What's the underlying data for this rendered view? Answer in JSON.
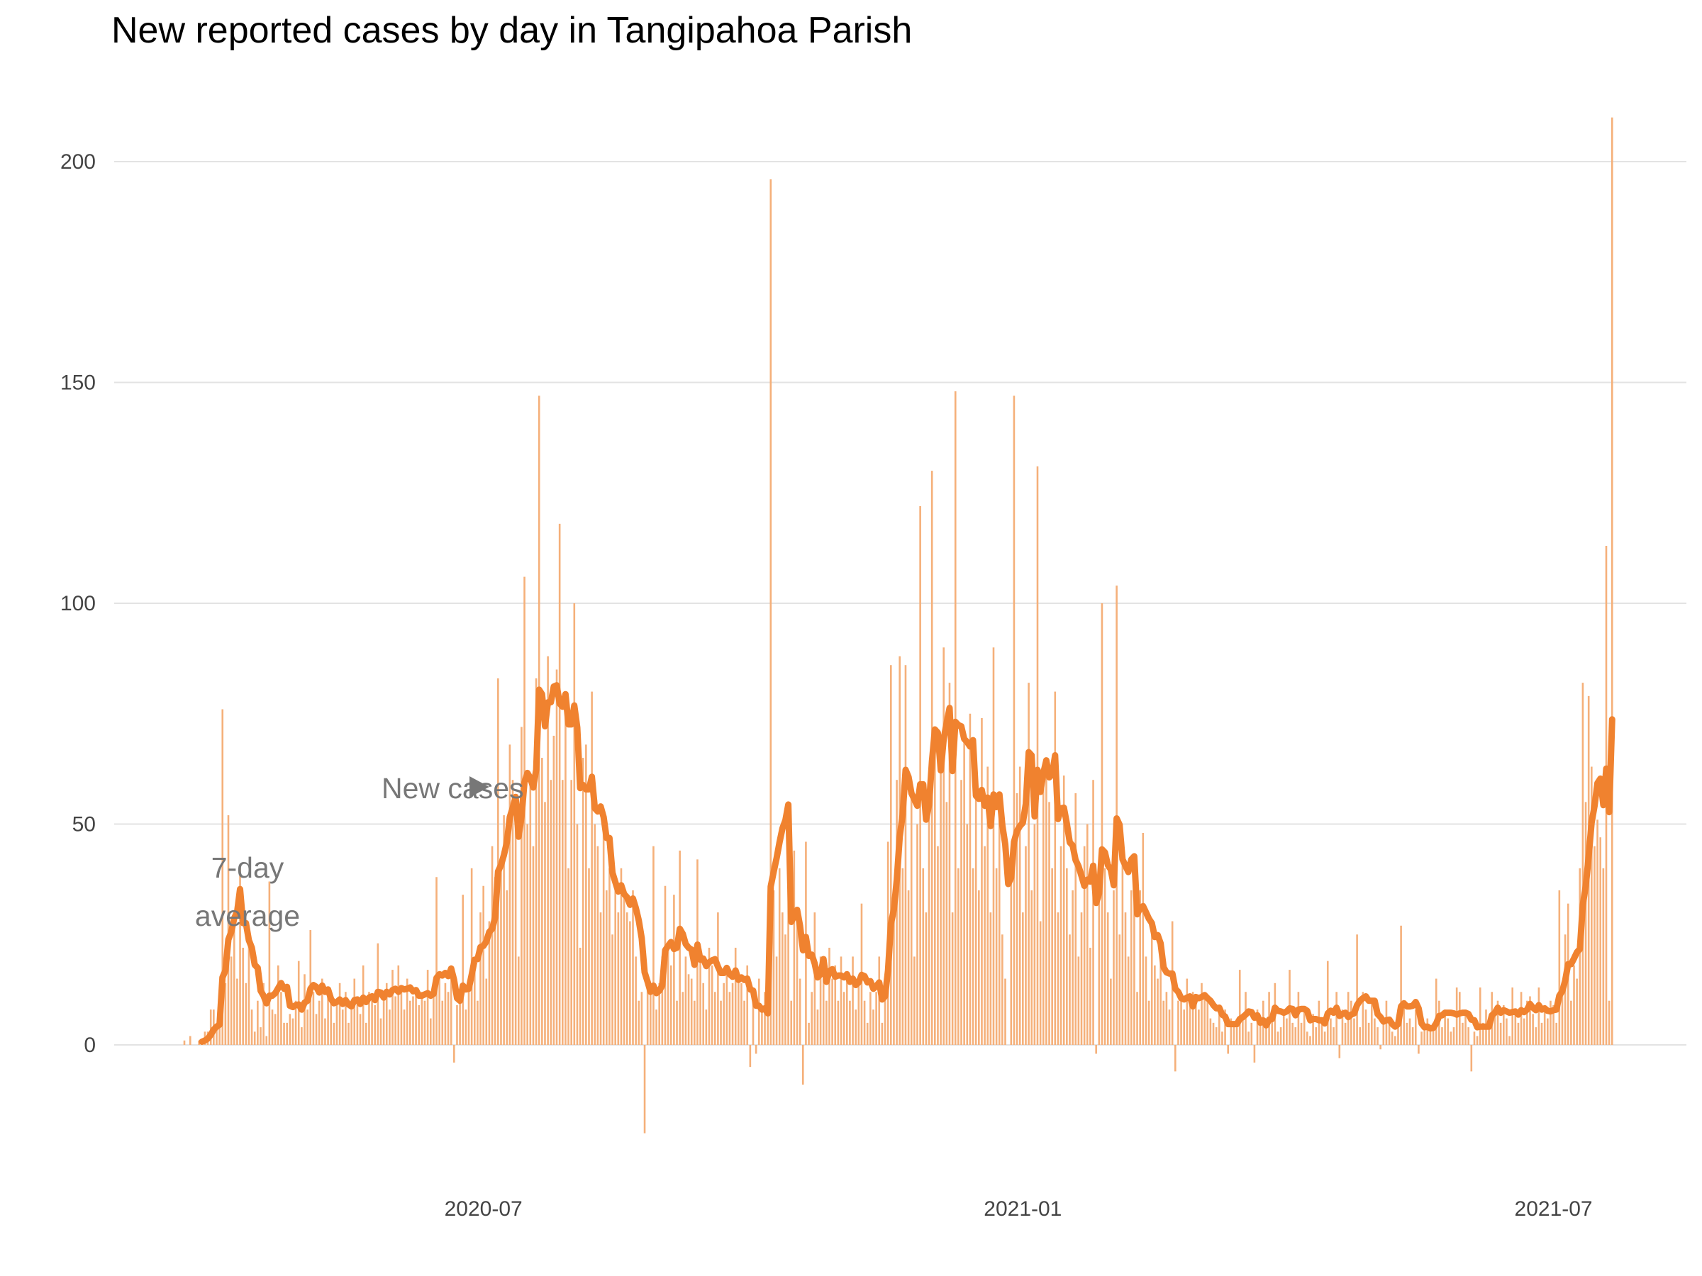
{
  "chart_data": {
    "type": "bar",
    "title": "New reported cases by day in Tangipahoa Parish",
    "xlabel": "",
    "ylabel": "",
    "start_date": "2020-03-21",
    "ylim": [
      -25,
      215
    ],
    "y_ticks": [
      0,
      50,
      100,
      150,
      200
    ],
    "y_tick_labels": [
      "0",
      "50",
      "100",
      "150",
      "200"
    ],
    "x_ticks": [
      {
        "date": "2020-07-01",
        "label": "2020-07"
      },
      {
        "date": "2021-01-01",
        "label": "2021-01"
      },
      {
        "date": "2021-07-01",
        "label": "2021-07"
      }
    ],
    "grid": true,
    "annotations": {
      "new_cases": "New cases",
      "avg_line1": "7-day",
      "avg_line2": "average"
    },
    "series": [
      {
        "name": "New cases",
        "type": "bar",
        "color": "#f5b07a",
        "values": [
          1,
          0,
          2,
          0,
          0,
          1,
          1,
          3,
          3,
          8,
          8,
          5,
          4,
          76,
          14,
          52,
          20,
          30,
          15,
          40,
          22,
          14,
          25,
          8,
          3,
          10,
          4,
          14,
          2,
          37,
          8,
          7,
          18,
          12,
          5,
          5,
          7,
          6,
          10,
          19,
          4,
          16,
          8,
          26,
          12,
          7,
          10,
          15,
          6,
          12,
          11,
          5,
          9,
          14,
          8,
          12,
          5,
          8,
          15,
          10,
          7,
          18,
          5,
          12,
          10,
          9,
          23,
          6,
          10,
          14,
          8,
          17,
          11,
          18,
          12,
          8,
          15,
          10,
          11,
          13,
          9,
          12,
          10,
          17,
          6,
          14,
          38,
          15,
          10,
          14,
          12,
          18,
          -4,
          9,
          11,
          34,
          8,
          13,
          40,
          20,
          10,
          30,
          36,
          15,
          28,
          45,
          38,
          83,
          40,
          52,
          35,
          68,
          60,
          55,
          20,
          72,
          106,
          50,
          60,
          45,
          83,
          147,
          65,
          55,
          88,
          60,
          70,
          85,
          118,
          60,
          75,
          40,
          60,
          100,
          50,
          22,
          65,
          68,
          40,
          80,
          50,
          45,
          30,
          48,
          35,
          40,
          25,
          35,
          30,
          40,
          34,
          30,
          28,
          35,
          20,
          10,
          12,
          -20,
          15,
          12,
          45,
          8,
          14,
          20,
          36,
          22,
          18,
          34,
          10,
          44,
          12,
          20,
          16,
          15,
          10,
          42,
          20,
          14,
          8,
          22,
          18,
          12,
          30,
          10,
          14,
          16,
          12,
          14,
          22,
          15,
          14,
          10,
          18,
          -5,
          12,
          -2,
          15,
          8,
          12,
          10,
          196,
          35,
          20,
          40,
          30,
          25,
          35,
          10,
          44,
          30,
          15,
          -9,
          46,
          5,
          12,
          30,
          8,
          20,
          15,
          10,
          22,
          15,
          18,
          10,
          20,
          12,
          15,
          10,
          20,
          8,
          14,
          32,
          10,
          5,
          12,
          8,
          12,
          20,
          5,
          15,
          46,
          86,
          30,
          60,
          88,
          40,
          86,
          35,
          60,
          20,
          50,
          122,
          40,
          30,
          58,
          130,
          70,
          45,
          62,
          90,
          55,
          82,
          30,
          148,
          40,
          60,
          70,
          50,
          75,
          40,
          60,
          35,
          74,
          45,
          63,
          30,
          90,
          40,
          55,
          25,
          15,
          0,
          40,
          147,
          57,
          63,
          30,
          45,
          82,
          35,
          50,
          131,
          28,
          60,
          65,
          55,
          40,
          80,
          30,
          45,
          61,
          40,
          25,
          35,
          57,
          20,
          30,
          45,
          50,
          22,
          60,
          -2,
          35,
          100,
          40,
          30,
          15,
          35,
          104,
          25,
          45,
          30,
          20,
          35,
          40,
          12,
          35,
          48,
          20,
          10,
          28,
          18,
          15,
          22,
          10,
          12,
          8,
          28,
          -6,
          10,
          12,
          8,
          15,
          10,
          12,
          9,
          8,
          14,
          11,
          10,
          6,
          5,
          4,
          9,
          3,
          8,
          -2,
          6,
          5,
          4,
          17,
          6,
          12,
          3,
          5,
          -4,
          8,
          5,
          10,
          4,
          12,
          6,
          14,
          3,
          4,
          8,
          6,
          17,
          5,
          4,
          12,
          5,
          8,
          3,
          2,
          7,
          4,
          10,
          5,
          3,
          19,
          6,
          4,
          12,
          -3,
          8,
          5,
          12,
          10,
          6,
          25,
          4,
          12,
          8,
          5,
          10,
          6,
          4,
          -1,
          5,
          10,
          6,
          3,
          2,
          8,
          27,
          10,
          5,
          6,
          4,
          8,
          -2,
          3,
          4,
          6,
          3,
          5,
          15,
          10,
          4,
          8,
          6,
          3,
          4,
          13,
          12,
          5,
          8,
          4,
          -6,
          3,
          2,
          13,
          5,
          8,
          4,
          12,
          7,
          10,
          5,
          9,
          6,
          2,
          13,
          8,
          5,
          12,
          6,
          10,
          11,
          7,
          4,
          13,
          5,
          8,
          6,
          10,
          9,
          5,
          35,
          12,
          25,
          32,
          10,
          18,
          15,
          40,
          82,
          55,
          79,
          63,
          45,
          51,
          47,
          40,
          113,
          10,
          210
        ]
      },
      {
        "name": "7-day average",
        "type": "line",
        "color": "#f0822f",
        "window": 7
      }
    ]
  }
}
